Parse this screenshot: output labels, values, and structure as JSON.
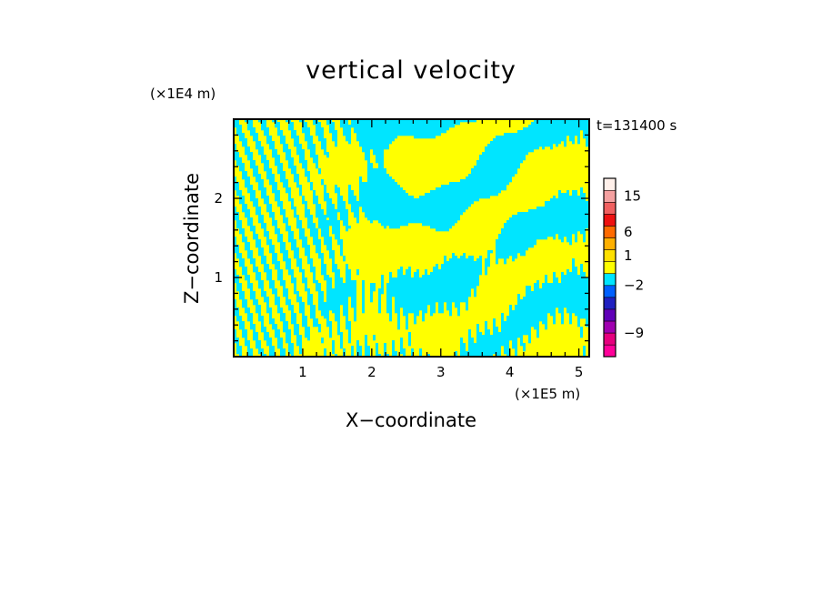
{
  "chart_data": {
    "type": "heatmap",
    "title": "vertical velocity",
    "xlabel": "X−coordinate",
    "ylabel": "Z−coordinate",
    "x_unit": "(×1E5 m)",
    "y_unit": "(×1E4 m)",
    "time_label": "t=131400 s",
    "xlim": [
      0,
      5.15
    ],
    "ylim": [
      0,
      3.0
    ],
    "x_ticks": [
      {
        "value": 1,
        "label": "1"
      },
      {
        "value": 2,
        "label": "2"
      },
      {
        "value": 3,
        "label": "3"
      },
      {
        "value": 4,
        "label": "4"
      },
      {
        "value": 5,
        "label": "5"
      }
    ],
    "y_ticks": [
      {
        "value": 1,
        "label": "1"
      },
      {
        "value": 2,
        "label": "2"
      }
    ],
    "field_colors": {
      "positive": "#ffff00",
      "negative": "#00e5ff"
    },
    "colorbar": {
      "bands": [
        {
          "color": "#ff0099"
        },
        {
          "color": "#e6007e"
        },
        {
          "color": "#a000b0"
        },
        {
          "color": "#6000b8"
        },
        {
          "color": "#2020c0"
        },
        {
          "color": "#0060ff"
        },
        {
          "color": "#00e5ff"
        },
        {
          "color": "#ffff00"
        },
        {
          "color": "#ffe000"
        },
        {
          "color": "#ffb000"
        },
        {
          "color": "#ff6a00"
        },
        {
          "color": "#ee1111"
        },
        {
          "color": "#f06060"
        },
        {
          "color": "#f4a0a0"
        },
        {
          "color": "#fff0ea"
        }
      ],
      "labels": [
        {
          "text": "15",
          "band": 13
        },
        {
          "text": "6",
          "band": 10
        },
        {
          "text": "1",
          "band": 8
        },
        {
          "text": "−2",
          "band": 5.5
        },
        {
          "text": "−9",
          "band": 1.5
        }
      ]
    }
  }
}
